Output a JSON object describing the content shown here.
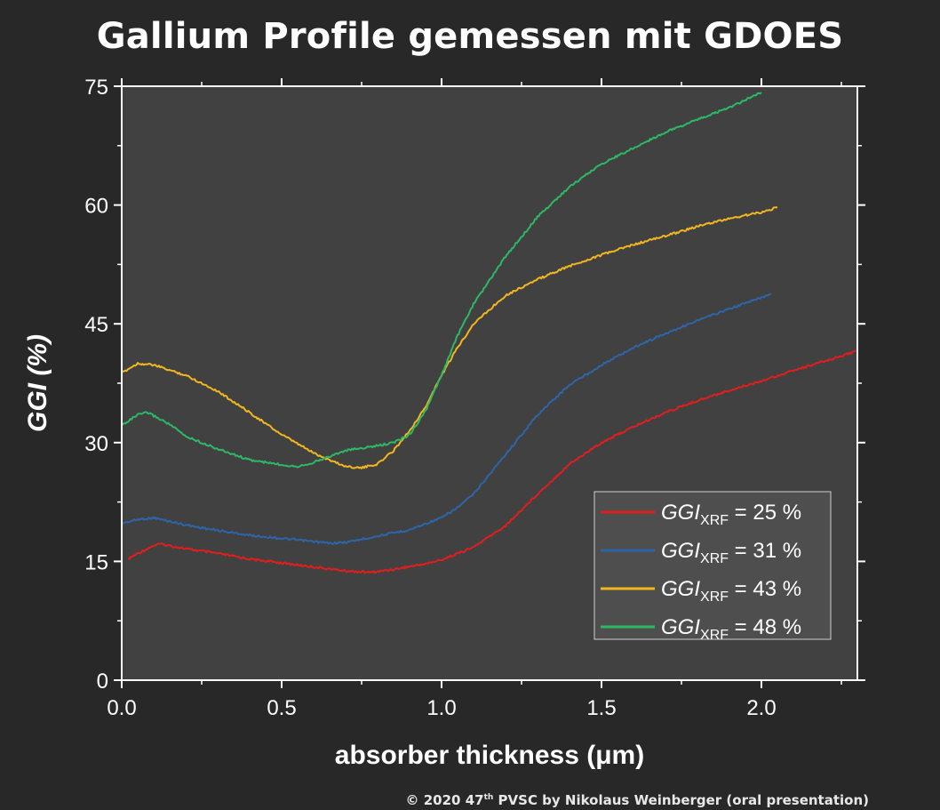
{
  "title": "Gallium Profile gemessen mit GDOES",
  "footer": {
    "pre": "© 2020 47",
    "sup": "th",
    "post": " PVSC  by Nikolaus Weinberger (oral presentation)"
  },
  "chart_data": {
    "type": "line",
    "xlabel": "absorber thickness  (μm)",
    "ylabel": "GGI (%)",
    "xlim": [
      0,
      2.3
    ],
    "ylim": [
      0,
      75
    ],
    "xticks": [
      "0.0",
      "0.5",
      "1.0",
      "1.5",
      "2.0"
    ],
    "yticks": [
      "0",
      "15",
      "30",
      "45",
      "60",
      "75"
    ],
    "grid": false,
    "legend_position": "lower-right",
    "series": [
      {
        "name": "GGI_XRF = 25 %",
        "legend_main": "GGI",
        "legend_sub": "XRF",
        "legend_value": " = 25 %",
        "color": "#e01e1e",
        "x": [
          0.02,
          0.05,
          0.1,
          0.12,
          0.2,
          0.3,
          0.4,
          0.5,
          0.6,
          0.7,
          0.78,
          0.85,
          0.95,
          1.0,
          1.1,
          1.2,
          1.3,
          1.4,
          1.5,
          1.6,
          1.7,
          1.8,
          1.9,
          2.0,
          2.1,
          2.2,
          2.3
        ],
        "y": [
          15.3,
          16.0,
          17.0,
          17.2,
          16.6,
          16.0,
          15.3,
          14.8,
          14.3,
          13.8,
          13.6,
          14.0,
          14.7,
          15.2,
          16.8,
          19.5,
          23.5,
          27.3,
          30.0,
          32.0,
          33.8,
          35.3,
          36.6,
          37.8,
          39.1,
          40.3,
          41.6
        ]
      },
      {
        "name": "GGI_XRF = 31 %",
        "legend_main": "GGI",
        "legend_sub": "XRF",
        "legend_value": " = 31 %",
        "color": "#2e64a8",
        "x": [
          0.0,
          0.05,
          0.1,
          0.2,
          0.3,
          0.4,
          0.5,
          0.6,
          0.65,
          0.7,
          0.8,
          0.9,
          1.0,
          1.05,
          1.1,
          1.2,
          1.3,
          1.4,
          1.5,
          1.6,
          1.7,
          1.8,
          1.9,
          2.0,
          2.03
        ],
        "y": [
          19.8,
          20.3,
          20.5,
          19.6,
          18.9,
          18.3,
          17.9,
          17.5,
          17.3,
          17.4,
          18.2,
          19.0,
          20.5,
          21.8,
          23.5,
          28.5,
          33.5,
          37.3,
          39.8,
          42.0,
          43.8,
          45.4,
          46.9,
          48.3,
          48.8
        ]
      },
      {
        "name": "GGI_XRF = 43 %",
        "legend_main": "GGI",
        "legend_sub": "XRF",
        "legend_value": " = 43 %",
        "color": "#f2b61f",
        "x": [
          0.0,
          0.05,
          0.1,
          0.2,
          0.3,
          0.4,
          0.5,
          0.6,
          0.65,
          0.7,
          0.75,
          0.8,
          0.85,
          0.9,
          0.95,
          1.0,
          1.05,
          1.1,
          1.2,
          1.3,
          1.4,
          1.5,
          1.6,
          1.7,
          1.8,
          1.9,
          2.0,
          2.05
        ],
        "y": [
          38.8,
          40.0,
          39.8,
          38.5,
          36.5,
          33.8,
          31.0,
          28.7,
          27.8,
          27.0,
          26.8,
          27.3,
          29.0,
          31.5,
          34.5,
          38.5,
          42.0,
          45.0,
          48.6,
          50.6,
          52.3,
          53.7,
          55.0,
          56.1,
          57.3,
          58.3,
          59.1,
          59.7
        ]
      },
      {
        "name": "GGI_XRF = 48 %",
        "legend_main": "GGI",
        "legend_sub": "XRF",
        "legend_value": " = 48 %",
        "color": "#2eb866",
        "x": [
          0.0,
          0.05,
          0.08,
          0.1,
          0.15,
          0.2,
          0.3,
          0.4,
          0.5,
          0.55,
          0.6,
          0.7,
          0.8,
          0.85,
          0.9,
          0.95,
          1.0,
          1.05,
          1.1,
          1.2,
          1.3,
          1.4,
          1.5,
          1.6,
          1.7,
          1.8,
          1.9,
          2.0
        ],
        "y": [
          32.2,
          33.5,
          33.8,
          33.4,
          32.3,
          30.8,
          29.2,
          27.8,
          27.2,
          27.0,
          27.5,
          29.0,
          29.6,
          30.0,
          31.0,
          34.0,
          38.5,
          43.5,
          47.5,
          53.5,
          58.5,
          62.3,
          65.2,
          67.2,
          69.2,
          70.8,
          72.3,
          74.2
        ]
      }
    ]
  }
}
